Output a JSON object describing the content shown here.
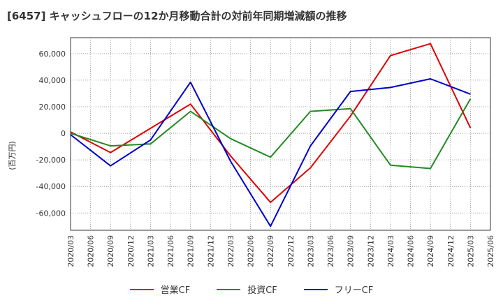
{
  "title": "[6457]  キャッシュフローの12か月移動合計の対前年同期増減額の推移",
  "ylabel": "(百万円)",
  "chart_data": {
    "type": "line",
    "x": [
      "2020/03",
      "2020/06",
      "2020/09",
      "2020/12",
      "2021/03",
      "2021/06",
      "2021/09",
      "2021/12",
      "2022/03",
      "2022/06",
      "2022/09",
      "2022/12",
      "2023/03",
      "2023/06",
      "2023/09",
      "2023/12",
      "2024/03",
      "2024/06",
      "2024/09",
      "2024/12",
      "2025/03",
      "2025/06"
    ],
    "ylim": [
      -73000,
      72000
    ],
    "yticks": [
      -60000,
      -40000,
      -20000,
      0,
      20000,
      40000,
      60000
    ],
    "ytick_labels": [
      "-60,000",
      "-40,000",
      "-20,000",
      "0",
      "20,000",
      "40,000",
      "60,000"
    ],
    "grid": true,
    "legend_position": "bottom",
    "series": [
      {
        "name": "営業CF",
        "color": "#dd0000",
        "points": [
          [
            "2020/03",
            1000
          ],
          [
            "2020/09",
            -14500
          ],
          [
            "2021/09",
            22000
          ],
          [
            "2022/03",
            -17000
          ],
          [
            "2022/09",
            -52000
          ],
          [
            "2023/03",
            -26000
          ],
          [
            "2023/09",
            13000
          ],
          [
            "2024/03",
            58500
          ],
          [
            "2024/09",
            67500
          ],
          [
            "2025/03",
            4000
          ]
        ]
      },
      {
        "name": "投資CF",
        "color": "#228b22",
        "points": [
          [
            "2020/03",
            0
          ],
          [
            "2020/09",
            -9500
          ],
          [
            "2021/03",
            -8000
          ],
          [
            "2021/09",
            16500
          ],
          [
            "2022/03",
            -4000
          ],
          [
            "2022/09",
            -18000
          ],
          [
            "2023/03",
            16500
          ],
          [
            "2023/09",
            18500
          ],
          [
            "2024/03",
            -24000
          ],
          [
            "2024/09",
            -26500
          ],
          [
            "2025/03",
            26000
          ]
        ]
      },
      {
        "name": "フリーCF",
        "color": "#0000cc",
        "points": [
          [
            "2020/03",
            -1000
          ],
          [
            "2020/09",
            -24500
          ],
          [
            "2021/03",
            -5000
          ],
          [
            "2021/09",
            38500
          ],
          [
            "2022/03",
            -21000
          ],
          [
            "2022/09",
            -70000
          ],
          [
            "2023/03",
            -9500
          ],
          [
            "2023/09",
            31500
          ],
          [
            "2024/03",
            34500
          ],
          [
            "2024/09",
            41000
          ],
          [
            "2025/03",
            29500
          ]
        ]
      }
    ]
  }
}
